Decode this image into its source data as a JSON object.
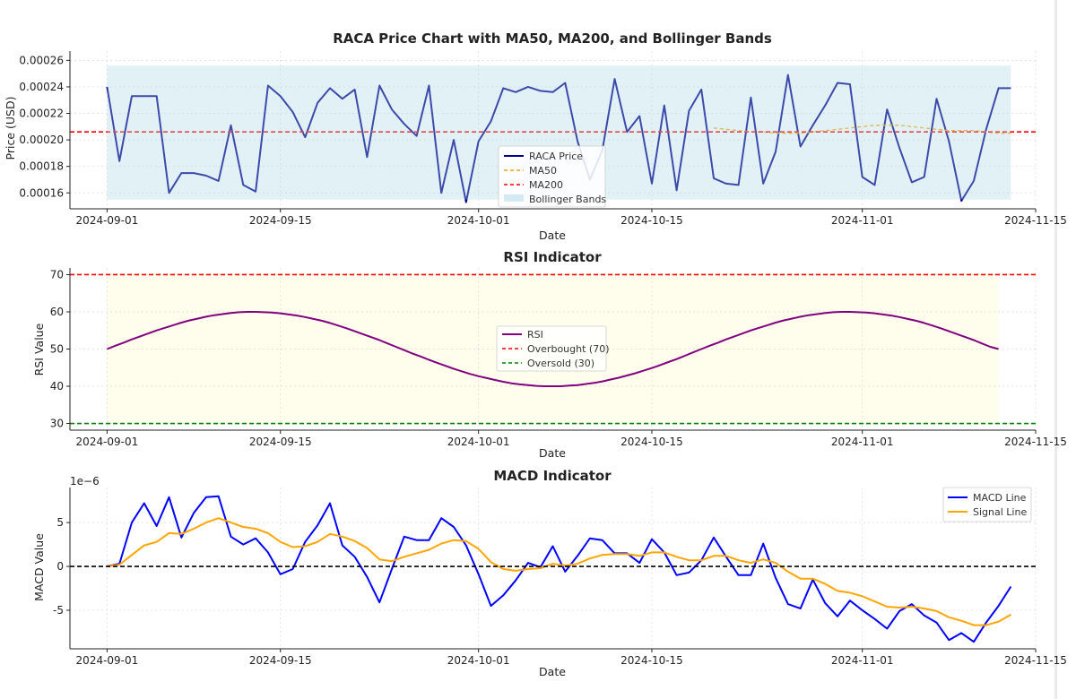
{
  "chart_data": [
    {
      "type": "line",
      "title": "RACA Price Chart with MA50, MA200, and Bollinger Bands",
      "xlabel": "Date",
      "ylabel": "Price (USD)",
      "xlim": [
        "2024-08-29",
        "2024-11-15"
      ],
      "ylim": [
        0.000148,
        0.000267
      ],
      "x_start": "2024-09-01",
      "xticks": [
        "2024-09-01",
        "2024-09-15",
        "2024-10-01",
        "2024-10-15",
        "2024-11-01",
        "2024-11-15"
      ],
      "yticks": [
        0.00016,
        0.00018,
        0.0002,
        0.00022,
        0.00024,
        0.00026
      ],
      "ytick_labels": [
        "0.00016",
        "0.00018",
        "0.00020",
        "0.00022",
        "0.00024",
        "0.00026"
      ],
      "series": [
        {
          "name": "RACA Price",
          "color": "#00008b",
          "values": [
            0.00024,
            0.000184,
            0.000233,
            0.000233,
            0.000233,
            0.00016,
            0.000175,
            0.000175,
            0.000173,
            0.000169,
            0.000211,
            0.000166,
            0.000161,
            0.000241,
            0.000233,
            0.000221,
            0.000202,
            0.000228,
            0.000239,
            0.000231,
            0.000238,
            0.000187,
            0.000241,
            0.000223,
            0.000212,
            0.000203,
            0.000241,
            0.00016,
            0.0002,
            0.000153,
            0.000199,
            0.000214,
            0.000239,
            0.000236,
            0.00024,
            0.000237,
            0.000236,
            0.000243,
            0.000199,
            0.00017,
            0.000192,
            0.000246,
            0.000206,
            0.000218,
            0.000167,
            0.000226,
            0.000162,
            0.000222,
            0.000238,
            0.000171,
            0.000167,
            0.000166,
            0.000232,
            0.000167,
            0.000191,
            0.000249,
            0.000195,
            0.000211,
            0.000226,
            0.000243,
            0.000242,
            0.000172,
            0.000166,
            0.000223,
            0.000194,
            0.000168,
            0.000172,
            0.000231,
            0.000199,
            0.000154,
            0.000169,
            0.000208,
            0.000239,
            0.000239
          ]
        },
        {
          "name": "MA50",
          "color": "#ffa500",
          "dash": true,
          "start_index": 49,
          "values": [
            0.000209,
            0.000208,
            0.000207,
            0.000206,
            0.000206,
            0.000205,
            0.000205,
            0.000205,
            0.000206,
            0.000207,
            0.000208,
            0.000209,
            0.00021,
            0.000211,
            0.000211,
            0.000211,
            0.00021,
            0.000209,
            0.000208,
            0.000207,
            0.000207,
            0.000207,
            0.000206,
            0.000205,
            0.000205
          ]
        },
        {
          "name": "MA200",
          "color": "#ff0000",
          "dash": true,
          "constant": 0.000206
        },
        {
          "name": "Bollinger Bands",
          "color": "#add8e6",
          "band": true,
          "upper": 0.000256,
          "lower": 0.000155
        }
      ]
    },
    {
      "type": "line",
      "title": "RSI Indicator",
      "xlabel": "Date",
      "ylabel": "RSI Value",
      "xlim": [
        "2024-08-29",
        "2024-11-15"
      ],
      "ylim": [
        28.2,
        71.8
      ],
      "xticks": [
        "2024-09-01",
        "2024-09-15",
        "2024-10-01",
        "2024-10-15",
        "2024-11-01",
        "2024-11-15"
      ],
      "yticks": [
        30,
        40,
        50,
        60,
        70
      ],
      "series": [
        {
          "name": "RSI",
          "color": "#800080",
          "values": [
            50.0,
            50.9,
            51.7,
            52.6,
            53.4,
            54.2,
            55.0,
            55.7,
            56.4,
            57.1,
            57.7,
            58.2,
            58.7,
            59.1,
            59.4,
            59.7,
            59.9,
            60.0,
            60.0,
            59.9,
            59.8,
            59.6,
            59.3,
            59.0,
            58.6,
            58.1,
            57.6,
            57.0,
            56.3,
            55.6,
            54.8,
            54.0,
            53.2,
            52.4,
            51.5,
            50.6,
            49.7,
            48.8,
            48.0,
            47.1,
            46.3,
            45.5,
            44.7,
            44.0,
            43.3,
            42.7,
            42.2,
            41.7,
            41.2,
            40.8,
            40.5,
            40.3,
            40.1,
            40.0,
            40.0,
            40.0,
            40.2,
            40.3,
            40.6,
            40.9,
            41.3,
            41.8,
            42.3,
            42.9,
            43.5,
            44.2,
            44.9,
            45.7,
            46.5,
            47.3,
            48.2,
            49.1,
            50.0,
            50.9,
            51.7,
            52.6,
            53.4,
            54.2,
            55.0,
            55.7,
            56.4,
            57.1,
            57.7,
            58.2,
            58.7,
            59.1,
            59.4,
            59.7,
            59.9,
            60.0,
            60.0,
            59.9,
            59.8,
            59.6,
            59.3,
            59.0,
            58.6,
            58.1,
            57.6,
            57.0,
            56.3,
            55.6,
            54.8,
            54.0,
            53.2,
            52.4,
            51.5,
            50.6,
            50.0
          ]
        },
        {
          "name": "Overbought (70)",
          "color": "#ff0000",
          "dash": true,
          "constant": 70
        },
        {
          "name": "Oversold (30)",
          "color": "#008000",
          "dash": true,
          "constant": 30
        }
      ]
    },
    {
      "type": "line",
      "title": "MACD Indicator",
      "xlabel": "Date",
      "ylabel": "MACD Value",
      "y_multiplier": "1e−6",
      "xlim": [
        "2024-08-29",
        "2024-11-15"
      ],
      "ylim": [
        -9.4,
        9.0
      ],
      "x_start": "2024-09-01",
      "xticks": [
        "2024-09-01",
        "2024-09-15",
        "2024-10-01",
        "2024-10-15",
        "2024-11-01",
        "2024-11-15"
      ],
      "yticks": [
        -5,
        0,
        5
      ],
      "zero_line": 0,
      "series": [
        {
          "name": "MACD Line",
          "color": "#0000ff",
          "values": [
            0.0,
            0.3,
            5.0,
            7.2,
            4.6,
            7.9,
            3.3,
            6.1,
            7.9,
            8.0,
            3.4,
            2.5,
            3.2,
            1.6,
            -0.9,
            -0.3,
            2.8,
            4.7,
            7.2,
            2.4,
            1.1,
            -1.2,
            -4.1,
            -0.3,
            3.4,
            3.0,
            3.0,
            5.5,
            4.5,
            2.4,
            -0.9,
            -4.5,
            -3.3,
            -1.6,
            0.4,
            -0.1,
            2.3,
            -0.6,
            1.2,
            3.2,
            3.0,
            1.5,
            1.5,
            0.4,
            3.1,
            1.6,
            -1.0,
            -0.7,
            0.7,
            3.3,
            1.1,
            -1.0,
            -1.0,
            2.6,
            -1.3,
            -4.3,
            -4.8,
            -1.5,
            -4.2,
            -5.7,
            -3.9,
            -5.0,
            -6.0,
            -7.1,
            -5.1,
            -4.3,
            -5.6,
            -6.4,
            -8.4,
            -7.6,
            -8.6,
            -6.4,
            -4.5,
            -2.3
          ]
        },
        {
          "name": "Signal Line",
          "color": "#ffa500",
          "values": [
            0.0,
            0.2,
            1.3,
            2.4,
            2.8,
            3.8,
            3.7,
            4.3,
            5.0,
            5.5,
            5.0,
            4.5,
            4.3,
            3.8,
            2.8,
            2.2,
            2.3,
            2.8,
            3.7,
            3.4,
            2.9,
            2.1,
            0.8,
            0.6,
            1.1,
            1.5,
            1.9,
            2.6,
            3.0,
            2.9,
            2.0,
            0.5,
            -0.3,
            -0.5,
            -0.3,
            -0.2,
            0.3,
            0.1,
            0.3,
            0.9,
            1.3,
            1.4,
            1.4,
            1.2,
            1.6,
            1.6,
            1.1,
            0.7,
            0.7,
            1.2,
            1.2,
            0.7,
            0.4,
            0.8,
            0.4,
            -0.6,
            -1.4,
            -1.4,
            -2.0,
            -2.8,
            -3.0,
            -3.4,
            -4.0,
            -4.6,
            -4.7,
            -4.6,
            -4.8,
            -5.1,
            -5.8,
            -6.2,
            -6.7,
            -6.7,
            -6.3,
            -5.5
          ]
        },
        {
          "name": "Zero Line",
          "color": "#000000",
          "dash": true,
          "constant": 0
        }
      ]
    }
  ]
}
